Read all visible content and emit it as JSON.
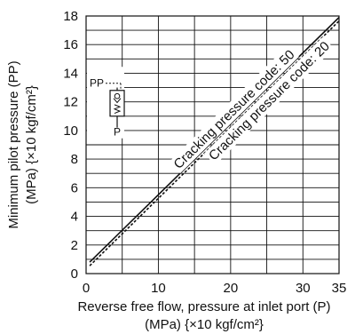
{
  "chart_data": {
    "type": "line",
    "xlabel_line1": "Reverse free flow, pressure at inlet port (P)",
    "xlabel_line2": "(MPa) {×10 kgf/cm²}",
    "ylabel_line1": "Minimum pilot pressure (PP)",
    "ylabel_line2": "(MPa) {×10 kgf/cm²}",
    "xlim": [
      0,
      35
    ],
    "ylim": [
      0,
      18
    ],
    "xticks": [
      0,
      10,
      20,
      30,
      35
    ],
    "yticks": [
      0,
      2,
      4,
      6,
      8,
      10,
      12,
      14,
      16,
      18
    ],
    "grid": true,
    "series": [
      {
        "name": "Cracking pressure code: 50",
        "x": [
          0.5,
          35
        ],
        "y": [
          0.8,
          17.9
        ],
        "style": "solid",
        "color": "#111111"
      },
      {
        "name": "Cracking pressure code: 20",
        "x": [
          0.5,
          35
        ],
        "y": [
          0.55,
          17.65
        ],
        "style": "dashed",
        "color": "#111111"
      }
    ],
    "symbol": {
      "top_label": "PP",
      "bottom_label": "P"
    }
  }
}
